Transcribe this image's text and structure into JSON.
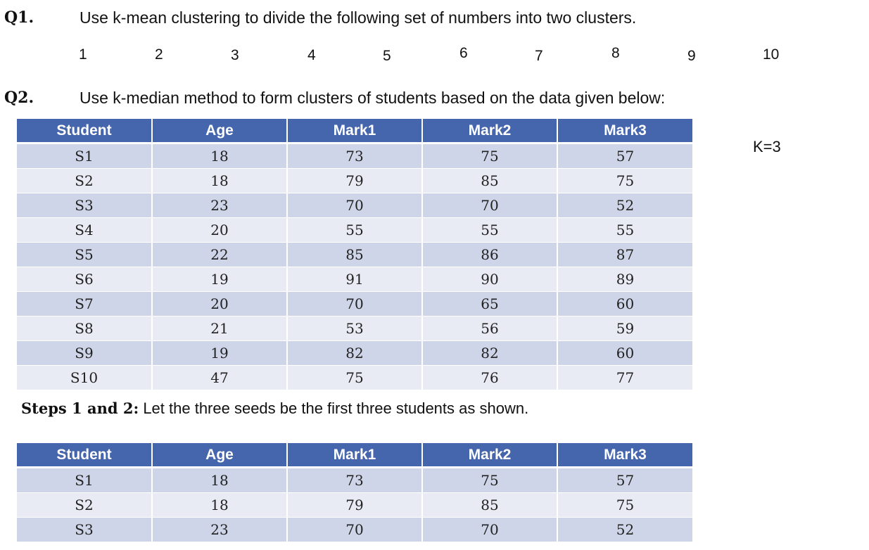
{
  "q1": {
    "label": "Q1.",
    "text": "Use k-mean clustering to divide the following set of numbers into two clusters.",
    "numbers": [
      "1",
      "2",
      "3",
      "4",
      "5",
      "6",
      "7",
      "8",
      "9",
      "10"
    ]
  },
  "q2": {
    "label": "Q2.",
    "text": "Use k-median method to form clusters of students based on the data given below:",
    "k_label": "K=3"
  },
  "table1": {
    "headers": [
      "Student",
      "Age",
      "Mark1",
      "Mark2",
      "Mark3"
    ],
    "rows": [
      [
        "S1",
        "18",
        "73",
        "75",
        "57"
      ],
      [
        "S2",
        "18",
        "79",
        "85",
        "75"
      ],
      [
        "S3",
        "23",
        "70",
        "70",
        "52"
      ],
      [
        "S4",
        "20",
        "55",
        "55",
        "55"
      ],
      [
        "S5",
        "22",
        "85",
        "86",
        "87"
      ],
      [
        "S6",
        "19",
        "91",
        "90",
        "89"
      ],
      [
        "S7",
        "20",
        "70",
        "65",
        "60"
      ],
      [
        "S8",
        "21",
        "53",
        "56",
        "59"
      ],
      [
        "S9",
        "19",
        "82",
        "82",
        "60"
      ],
      [
        "S10",
        "47",
        "75",
        "76",
        "77"
      ]
    ]
  },
  "steps": {
    "bold": "Steps 1 and 2:",
    "text": " Let the three seeds be the first three students as shown."
  },
  "table2": {
    "headers": [
      "Student",
      "Age",
      "Mark1",
      "Mark2",
      "Mark3"
    ],
    "rows": [
      [
        "S1",
        "18",
        "73",
        "75",
        "57"
      ],
      [
        "S2",
        "18",
        "79",
        "85",
        "75"
      ],
      [
        "S3",
        "23",
        "70",
        "70",
        "52"
      ]
    ]
  }
}
